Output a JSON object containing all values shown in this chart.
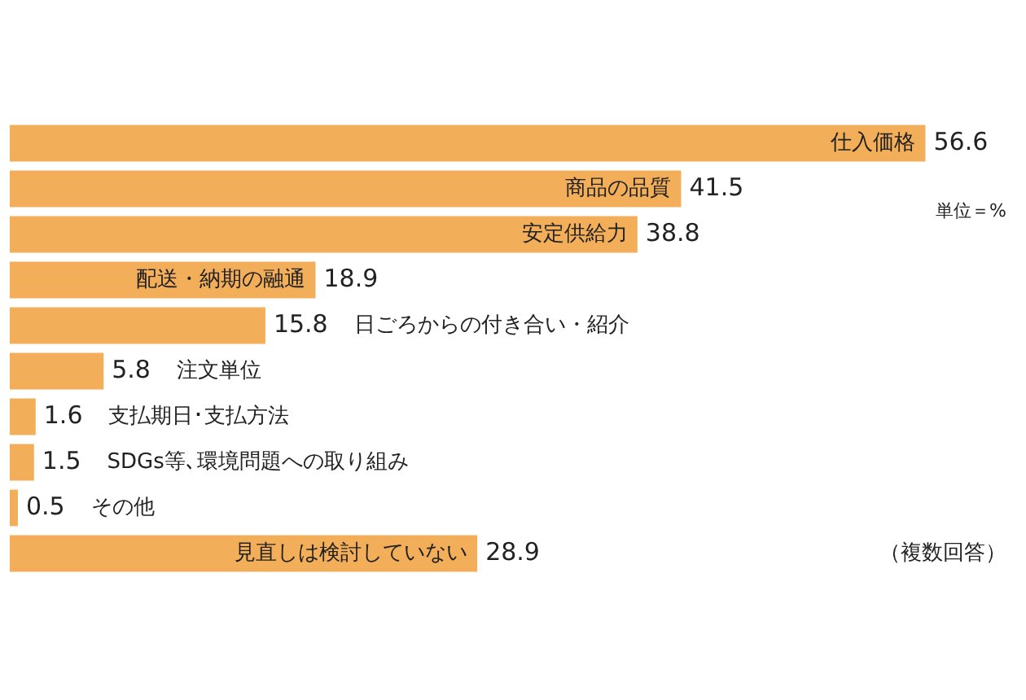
{
  "chart_data": {
    "type": "bar",
    "orientation": "horizontal",
    "categories": [
      "仕入価格",
      "商品の品質",
      "安定供給力",
      "配送・納期の融通",
      "日ごろからの付き合い・紹介",
      "注文単位",
      "支払期日･支払方法",
      "SDGs等､環境問題への取り組み",
      "その他",
      "見直しは検討していない"
    ],
    "values": [
      56.6,
      41.5,
      38.8,
      18.9,
      15.8,
      5.8,
      1.6,
      1.5,
      0.5,
      28.9
    ],
    "color": "#f3ae59",
    "data_labels": true,
    "legend": false,
    "tick_labels": false,
    "annotations": [
      "単位＝%",
      "（複数回答）"
    ]
  }
}
